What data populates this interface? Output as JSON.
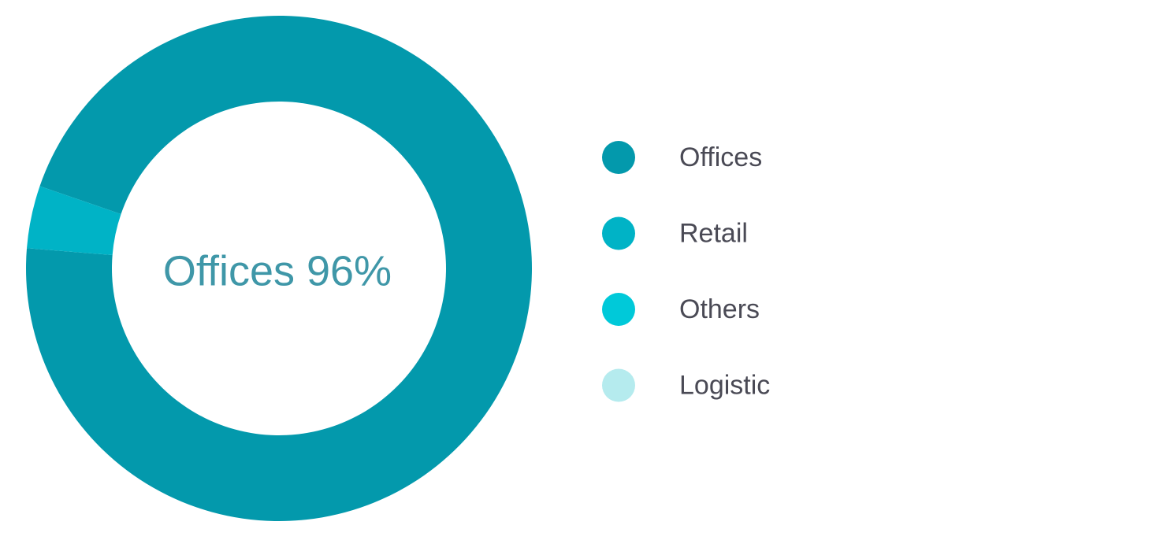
{
  "chart_data": {
    "type": "donut",
    "center_label": "Offices 96%",
    "categories": [
      "Offices",
      "Retail",
      "Others",
      "Logistic"
    ],
    "values": [
      96,
      4,
      0,
      0
    ],
    "colors": [
      "#0399ac",
      "#00b3c6",
      "#00c9d9",
      "#b5ebee"
    ],
    "legend": "right"
  }
}
